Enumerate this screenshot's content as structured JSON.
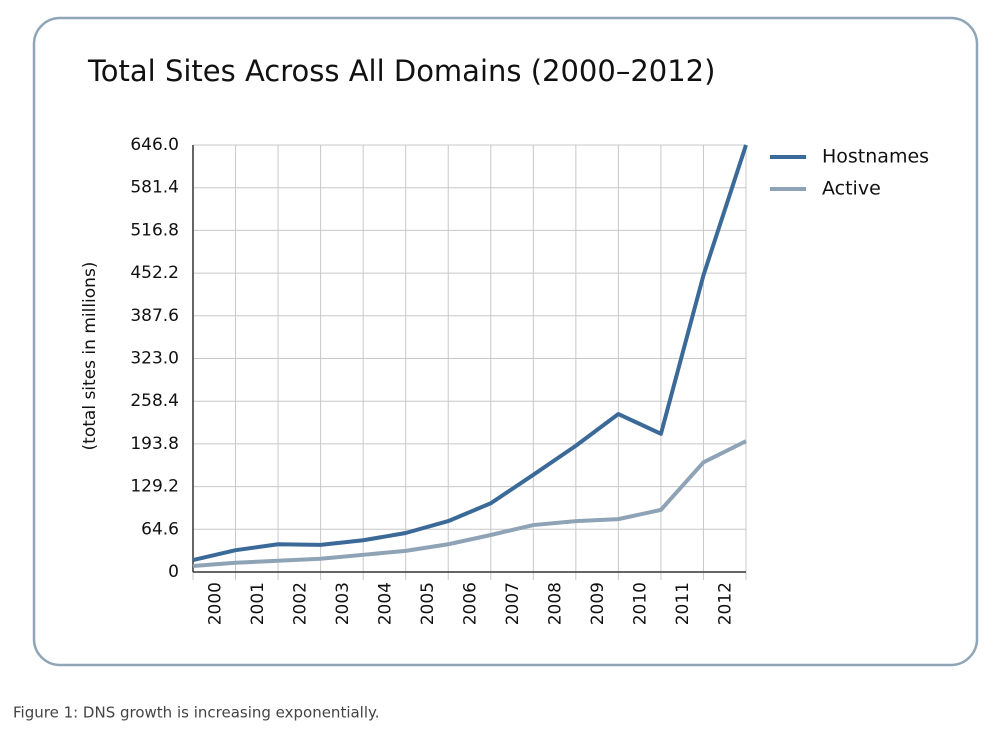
{
  "chart_data": {
    "type": "line",
    "title": "Total Sites Across All Domains (2000–2012)",
    "y_label": "(total sites in millions)",
    "caption": "Figure 1: DNS growth is increasing exponentially.",
    "x": [
      0,
      1,
      2,
      3,
      4,
      5,
      6,
      7,
      8,
      9,
      10,
      11,
      12,
      13
    ],
    "xlim": [
      0,
      13
    ],
    "xticks": [
      {
        "value": 0.5,
        "label": "2000"
      },
      {
        "value": 1.5,
        "label": "2001"
      },
      {
        "value": 2.5,
        "label": "2002"
      },
      {
        "value": 3.5,
        "label": "2003"
      },
      {
        "value": 4.5,
        "label": "2004"
      },
      {
        "value": 5.5,
        "label": "2005"
      },
      {
        "value": 6.5,
        "label": "2006"
      },
      {
        "value": 7.5,
        "label": "2007"
      },
      {
        "value": 8.5,
        "label": "2008"
      },
      {
        "value": 9.5,
        "label": "2009"
      },
      {
        "value": 10.5,
        "label": "2010"
      },
      {
        "value": 11.5,
        "label": "2011"
      },
      {
        "value": 12.5,
        "label": "2012"
      }
    ],
    "ylim": [
      0,
      646
    ],
    "yticks": [
      0,
      64.6,
      129.2,
      193.8,
      258.4,
      {
        "value": 323,
        "label": "323.0"
      },
      387.6,
      452.2,
      516.8,
      581.4,
      {
        "value": 646,
        "label": "646.0"
      }
    ],
    "grid": true,
    "legend": "right",
    "series": [
      {
        "name": "Hostnames",
        "color": "#3b6a99",
        "values": [
          18,
          33,
          42,
          41,
          48,
          59,
          77,
          104,
          147,
          191,
          239,
          209,
          449,
          646
        ]
      },
      {
        "name": "Active",
        "color": "#8ea3b5",
        "values": [
          9,
          14,
          17,
          20,
          26,
          32,
          42,
          56,
          71,
          77,
          80,
          94,
          166,
          198
        ]
      }
    ]
  }
}
